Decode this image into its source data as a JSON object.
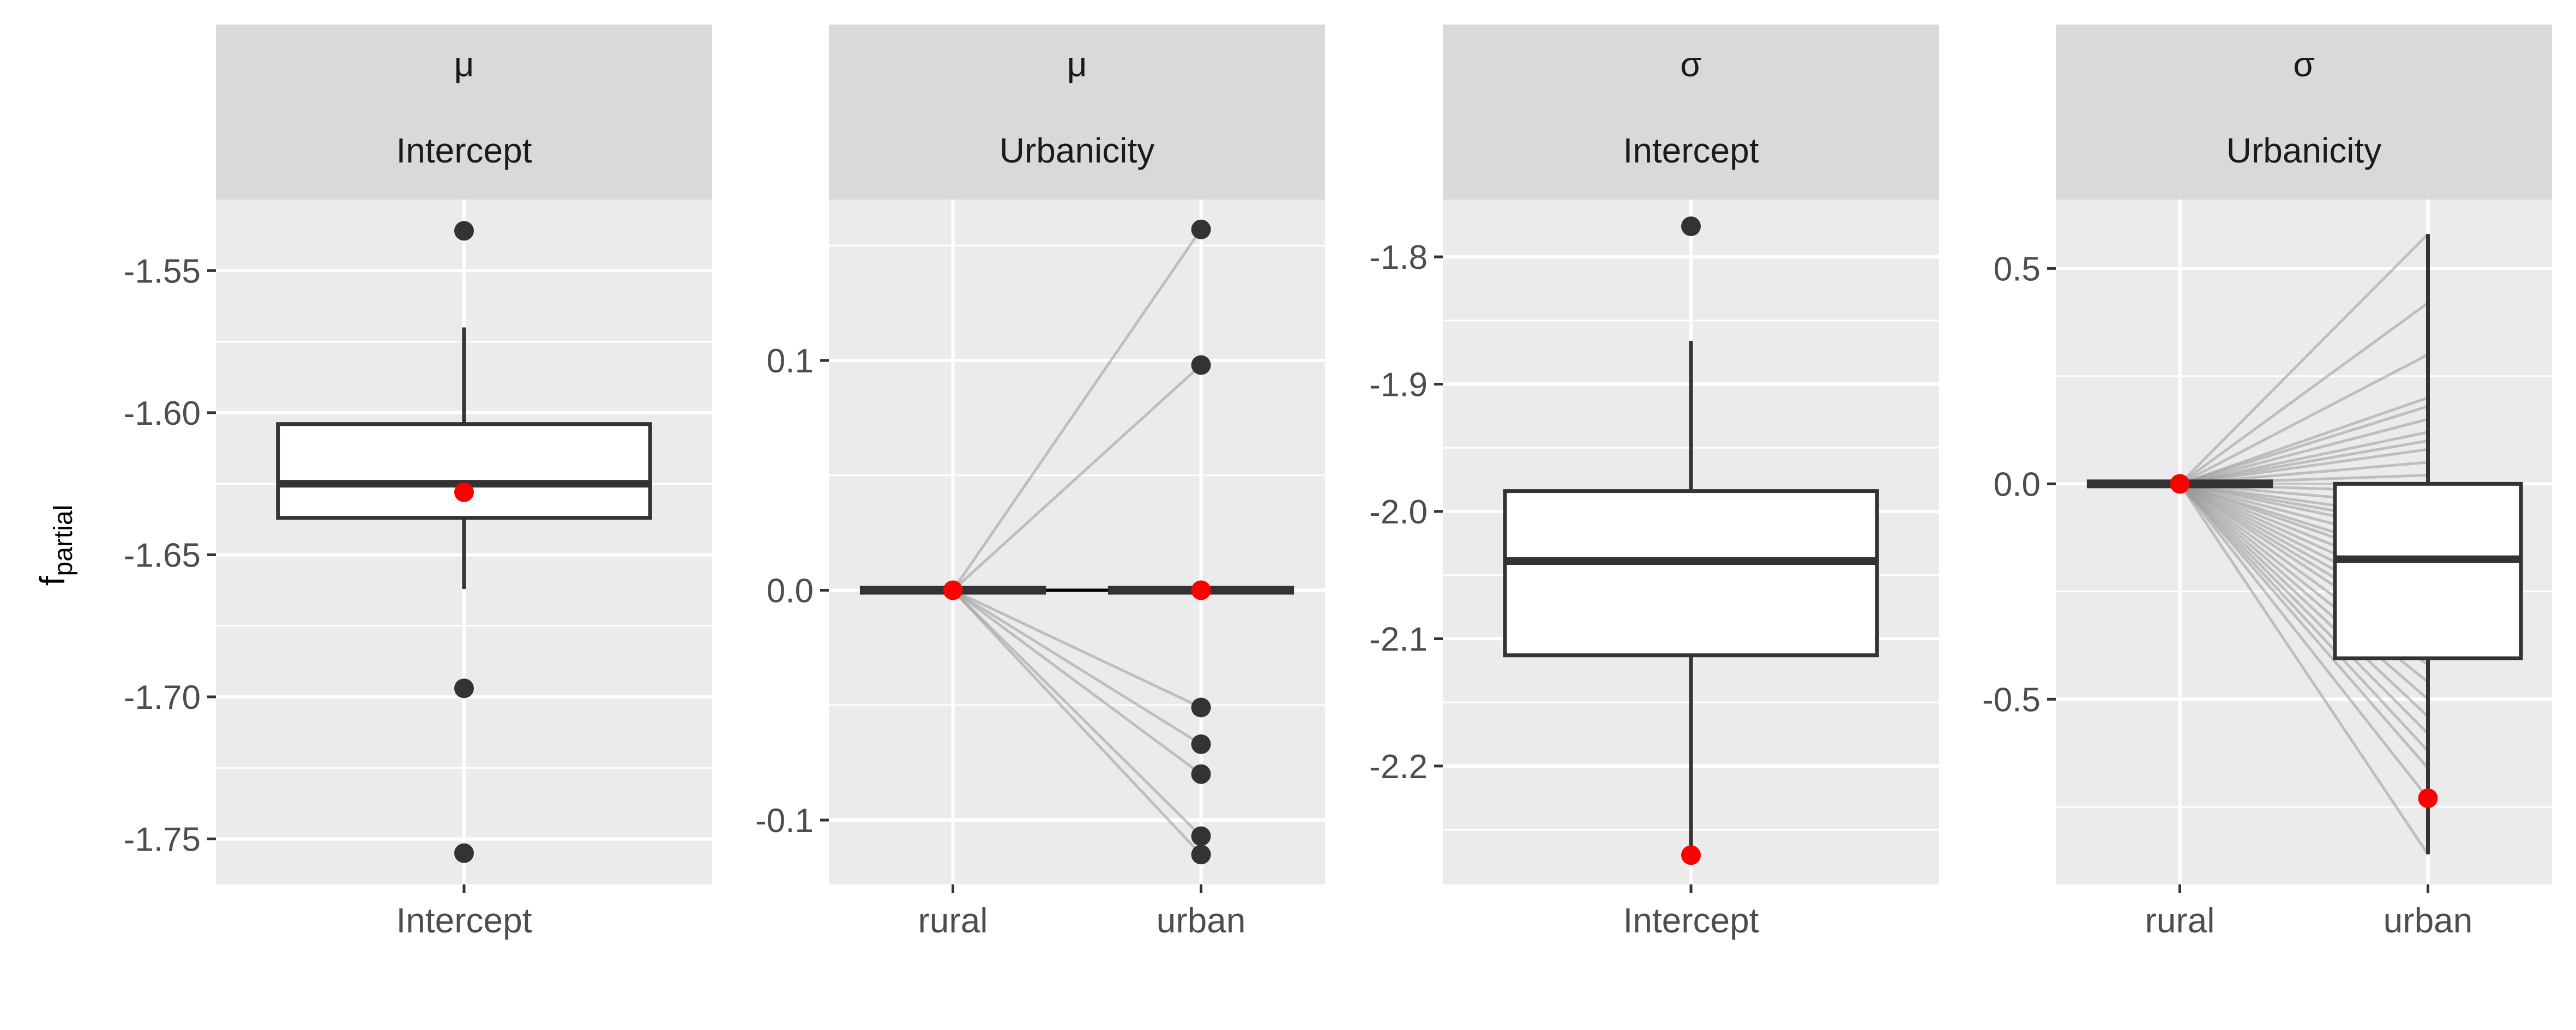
{
  "y_axis_label_main": "f",
  "y_axis_label_sub": "partial",
  "colors": {
    "panel_bg": "#ebebeb",
    "strip_bg": "#d9d9d9",
    "grid": "#ffffff",
    "box_line": "#333333",
    "point": "#333333",
    "highlight": "#ff0000",
    "line": "#999999",
    "text": "#4d4d4d"
  },
  "chart_data": [
    {
      "type": "box",
      "facet_top": "μ",
      "facet_bottom": "Intercept",
      "categories": [
        "Intercept"
      ],
      "ylim": [
        -1.766,
        -1.525
      ],
      "yticks": [
        -1.55,
        -1.6,
        -1.65,
        -1.7,
        -1.75
      ],
      "ytick_labels": [
        "-1.55",
        "-1.60",
        "-1.65",
        "-1.70",
        "-1.75"
      ],
      "boxes": [
        {
          "category": "Intercept",
          "q1": -1.637,
          "median": -1.625,
          "q3": -1.604,
          "whisker_low": -1.662,
          "whisker_high": -1.57
        }
      ],
      "outliers": [
        {
          "category": "Intercept",
          "y": -1.536
        },
        {
          "category": "Intercept",
          "y": -1.697
        },
        {
          "category": "Intercept",
          "y": -1.755
        }
      ],
      "highlight": [
        {
          "category": "Intercept",
          "y": -1.628
        }
      ],
      "lines": []
    },
    {
      "type": "box",
      "facet_top": "μ",
      "facet_bottom": "Urbanicity",
      "categories": [
        "rural",
        "urban"
      ],
      "ylim": [
        -0.128,
        0.17
      ],
      "yticks": [
        0.1,
        0.0,
        -0.1
      ],
      "ytick_labels": [
        "0.1",
        "0.0",
        "-0.1"
      ],
      "boxes": [
        {
          "category": "rural",
          "q1": 0,
          "median": 0,
          "q3": 0,
          "whisker_low": 0,
          "whisker_high": 0
        },
        {
          "category": "urban",
          "q1": 0,
          "median": 0,
          "q3": 0,
          "whisker_low": 0,
          "whisker_high": 0
        }
      ],
      "outliers": [
        {
          "category": "urban",
          "y": 0.157
        },
        {
          "category": "urban",
          "y": 0.098
        },
        {
          "category": "urban",
          "y": -0.051
        },
        {
          "category": "urban",
          "y": -0.067
        },
        {
          "category": "urban",
          "y": -0.08
        },
        {
          "category": "urban",
          "y": -0.107
        },
        {
          "category": "urban",
          "y": -0.115
        }
      ],
      "highlight": [
        {
          "category": "rural",
          "y": 0
        },
        {
          "category": "urban",
          "y": 0
        }
      ],
      "lines": [
        0.157,
        0.098,
        0.0,
        -0.051,
        -0.067,
        -0.08,
        -0.107,
        -0.115
      ]
    },
    {
      "type": "box",
      "facet_top": "σ",
      "facet_bottom": "Intercept",
      "categories": [
        "Intercept"
      ],
      "ylim": [
        -2.293,
        -1.755
      ],
      "yticks": [
        -1.8,
        -1.9,
        -2.0,
        -2.1,
        -2.2
      ],
      "ytick_labels": [
        "-1.8",
        "-1.9",
        "-2.0",
        "-2.1",
        "-2.2"
      ],
      "boxes": [
        {
          "category": "Intercept",
          "q1": -2.113,
          "median": -2.039,
          "q3": -1.984,
          "whisker_low": -2.27,
          "whisker_high": -1.866
        }
      ],
      "outliers": [
        {
          "category": "Intercept",
          "y": -1.776
        }
      ],
      "highlight": [
        {
          "category": "Intercept",
          "y": -2.27
        }
      ],
      "lines": []
    },
    {
      "type": "box",
      "facet_top": "σ",
      "facet_bottom": "Urbanicity",
      "categories": [
        "rural",
        "urban"
      ],
      "ylim": [
        -0.93,
        0.66
      ],
      "yticks": [
        0.5,
        0.0,
        -0.5
      ],
      "ytick_labels": [
        "0.5",
        "0.0",
        "-0.5"
      ],
      "boxes": [
        {
          "category": "rural",
          "q1": 0,
          "median": 0,
          "q3": 0,
          "whisker_low": 0,
          "whisker_high": 0
        },
        {
          "category": "urban",
          "q1": -0.405,
          "median": -0.175,
          "q3": 0.0,
          "whisker_low": -0.86,
          "whisker_high": 0.58
        }
      ],
      "outliers": [],
      "highlight": [
        {
          "category": "rural",
          "y": 0
        },
        {
          "category": "urban",
          "y": -0.73
        }
      ],
      "lines": [
        0.58,
        0.42,
        0.3,
        0.2,
        0.18,
        0.15,
        0.12,
        0.1,
        0.08,
        0.05,
        0.02,
        0.0,
        -0.02,
        -0.05,
        -0.08,
        -0.1,
        -0.12,
        -0.15,
        -0.18,
        -0.2,
        -0.23,
        -0.26,
        -0.29,
        -0.32,
        -0.35,
        -0.38,
        -0.42,
        -0.46,
        -0.5,
        -0.54,
        -0.58,
        -0.62,
        -0.66,
        -0.73,
        -0.86
      ]
    }
  ]
}
